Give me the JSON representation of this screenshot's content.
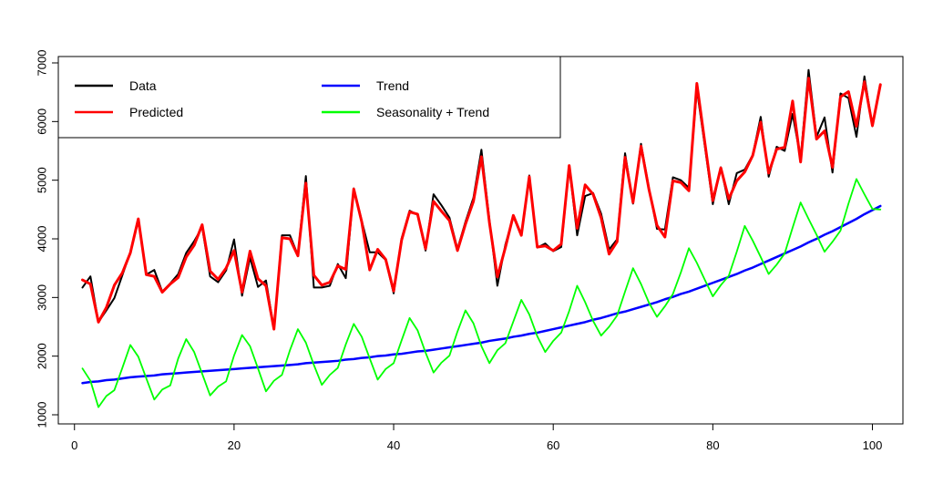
{
  "chart_data": {
    "type": "line",
    "xlim": [
      1,
      100
    ],
    "ylim": [
      1000,
      7000
    ],
    "x_ticks": [
      0,
      20,
      40,
      60,
      80,
      100
    ],
    "y_ticks": [
      1000,
      2000,
      3000,
      4000,
      5000,
      6000,
      7000
    ],
    "legend_placement": "top-left",
    "grid": false,
    "series": [
      {
        "name": "Data",
        "color": "#000000",
        "values": [
          3170,
          3360,
          2580,
          2780,
          2990,
          3380,
          3770,
          4320,
          3390,
          3470,
          3100,
          3240,
          3400,
          3760,
          3960,
          4200,
          3360,
          3260,
          3460,
          3990,
          3030,
          3680,
          3180,
          3290,
          2460,
          4060,
          4060,
          3720,
          5070,
          3170,
          3170,
          3200,
          3570,
          3330,
          4860,
          4310,
          3770,
          3770,
          3640,
          3070,
          4010,
          4480,
          4410,
          3800,
          4760,
          4570,
          4360,
          3830,
          4290,
          4700,
          5520,
          4320,
          3200,
          3900,
          4380,
          4060,
          5080,
          3850,
          3920,
          3790,
          3860,
          5250,
          4060,
          4730,
          4780,
          4430,
          3820,
          3990,
          5460,
          4600,
          5620,
          4860,
          4170,
          4160,
          5050,
          5000,
          4870,
          6550,
          5580,
          4590,
          5220,
          4590,
          5120,
          5180,
          5430,
          6080,
          5060,
          5570,
          5500,
          6130,
          5370,
          6880,
          5740,
          6070,
          5130,
          6480,
          6400,
          5740,
          6770,
          5920,
          6630
        ],
        "x_start": 1
      },
      {
        "name": "Predicted",
        "color": "#ff0000",
        "values": [
          3300,
          3230,
          2580,
          2830,
          3210,
          3420,
          3760,
          4340,
          3390,
          3360,
          3090,
          3230,
          3340,
          3690,
          3890,
          4240,
          3450,
          3310,
          3500,
          3800,
          3090,
          3790,
          3320,
          3200,
          2460,
          4020,
          4000,
          3710,
          4950,
          3380,
          3210,
          3260,
          3540,
          3480,
          4850,
          4290,
          3470,
          3820,
          3650,
          3110,
          3980,
          4460,
          4420,
          3830,
          4640,
          4470,
          4310,
          3800,
          4250,
          4640,
          5400,
          4280,
          3350,
          3850,
          4400,
          4060,
          5060,
          3860,
          3880,
          3800,
          3910,
          5250,
          4180,
          4920,
          4760,
          4360,
          3740,
          3950,
          5390,
          4620,
          5580,
          4840,
          4230,
          4030,
          4990,
          4960,
          4820,
          6650,
          5640,
          4650,
          5210,
          4680,
          4990,
          5140,
          5420,
          5990,
          5120,
          5530,
          5560,
          6350,
          5310,
          6740,
          5700,
          5840,
          5220,
          6420,
          6510,
          5920,
          6680,
          5930,
          6630
        ],
        "x_start": 1
      },
      {
        "name": "Trend",
        "color": "#0000ff",
        "values": [
          1540,
          1560,
          1570,
          1590,
          1600,
          1620,
          1640,
          1650,
          1660,
          1670,
          1690,
          1700,
          1710,
          1720,
          1730,
          1740,
          1750,
          1760,
          1770,
          1780,
          1790,
          1800,
          1810,
          1820,
          1830,
          1840,
          1850,
          1860,
          1880,
          1890,
          1900,
          1910,
          1920,
          1940,
          1950,
          1970,
          1980,
          2000,
          2010,
          2030,
          2040,
          2060,
          2080,
          2090,
          2110,
          2130,
          2150,
          2170,
          2190,
          2210,
          2230,
          2260,
          2280,
          2300,
          2330,
          2350,
          2380,
          2400,
          2430,
          2460,
          2490,
          2520,
          2550,
          2580,
          2620,
          2650,
          2690,
          2730,
          2760,
          2800,
          2840,
          2880,
          2920,
          2970,
          3010,
          3060,
          3100,
          3150,
          3200,
          3250,
          3300,
          3350,
          3400,
          3460,
          3510,
          3570,
          3630,
          3690,
          3750,
          3810,
          3870,
          3940,
          4000,
          4070,
          4130,
          4200,
          4270,
          4340,
          4420,
          4490,
          4560
        ],
        "x_start": 1
      },
      {
        "name": "Seasonality + Trend",
        "color": "#00ff00",
        "values": [
          1790,
          1580,
          1130,
          1320,
          1420,
          1800,
          2190,
          1990,
          1620,
          1260,
          1430,
          1500,
          1960,
          2290,
          2070,
          1700,
          1330,
          1480,
          1570,
          2010,
          2360,
          2170,
          1790,
          1400,
          1580,
          1680,
          2100,
          2460,
          2230,
          1850,
          1510,
          1680,
          1800,
          2200,
          2550,
          2330,
          1960,
          1600,
          1780,
          1880,
          2270,
          2650,
          2440,
          2060,
          1720,
          1890,
          2010,
          2420,
          2780,
          2560,
          2170,
          1880,
          2100,
          2220,
          2590,
          2960,
          2710,
          2340,
          2070,
          2260,
          2400,
          2770,
          3200,
          2920,
          2600,
          2350,
          2500,
          2690,
          3100,
          3500,
          3230,
          2910,
          2670,
          2850,
          3060,
          3430,
          3840,
          3590,
          3300,
          3020,
          3210,
          3370,
          3780,
          4220,
          3970,
          3690,
          3400,
          3560,
          3750,
          4190,
          4620,
          4340,
          4070,
          3780,
          3950,
          4140,
          4600,
          5020,
          4760,
          4510,
          4500
        ],
        "x_start": 1
      }
    ]
  }
}
